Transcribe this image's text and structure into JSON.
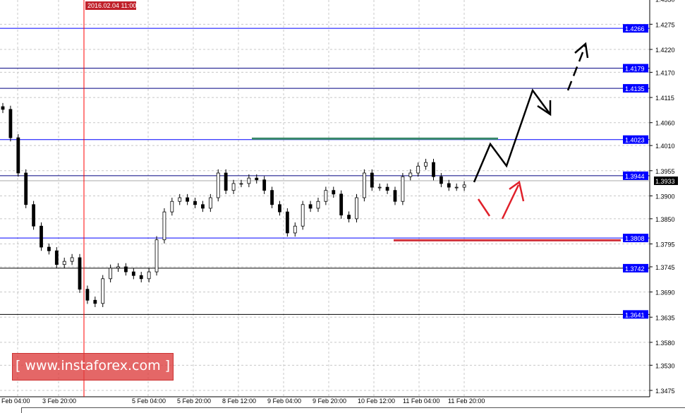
{
  "chart_data": {
    "type": "candlestick",
    "title": "",
    "yaxis_ticks": [
      "1.4330",
      "1.4275",
      "1.4220",
      "1.4170",
      "1.4115",
      "1.4060",
      "1.4010",
      "1.3955",
      "1.3900",
      "1.3850",
      "1.3795",
      "1.3745",
      "1.3690",
      "1.3635",
      "1.3580",
      "1.3530",
      "1.3475"
    ],
    "ylim": [
      1.345,
      1.433
    ],
    "xaxis_ticks": [
      "Feb 04:00",
      "3 Feb 20:00",
      "5 Feb 04:00",
      "5 Feb 20:00",
      "8 Feb 12:00",
      "9 Feb 04:00",
      "9 Feb 20:00",
      "10 Feb 12:00",
      "11 Feb 04:00",
      "11 Feb 20:00"
    ],
    "crosshair_time": "2016.02.04 11:00",
    "closes": [
      1.4089,
      1.4027,
      1.395,
      1.3881,
      1.3834,
      1.3788,
      1.378,
      1.375,
      1.3757,
      1.3765,
      1.3696,
      1.3672,
      1.3665,
      1.3719,
      1.3742,
      1.3745,
      1.3734,
      1.3726,
      1.3719,
      1.3734,
      1.3804,
      1.3865,
      1.3888,
      1.3896,
      1.3888,
      1.3881,
      1.3873,
      1.3896,
      1.395,
      1.3912,
      1.3927,
      1.3927,
      1.3939,
      1.3935,
      1.3912,
      1.3881,
      1.3865,
      1.3819,
      1.3834,
      1.3881,
      1.3873,
      1.3888,
      1.3912,
      1.3904,
      1.3858,
      1.385,
      1.3896,
      1.395,
      1.3919,
      1.3919,
      1.3912,
      1.3888,
      1.3942,
      1.395,
      1.3965,
      1.3973,
      1.3942,
      1.3927,
      1.3919,
      1.3919,
      1.3924
    ],
    "levels": [
      {
        "value": "1.4266",
        "color": "#0000ff"
      },
      {
        "value": "1.4179",
        "color": "#000080"
      },
      {
        "value": "1.4135",
        "color": "#000080"
      },
      {
        "value": "1.4023",
        "color": "#0000ff"
      },
      {
        "value": "1.3944",
        "color": "#000080"
      },
      {
        "value": "1.3808",
        "color": "#0000ff"
      },
      {
        "value": "1.3742",
        "color": "#000000"
      },
      {
        "value": "1.3641",
        "color": "#000000"
      }
    ],
    "current_price": "1.3933",
    "resistance_line": {
      "value": 1.4025,
      "color": "#3a8a6a"
    },
    "support_line": {
      "value": 1.3803,
      "color": "#d0303a"
    },
    "colors": {
      "label_bg": "#0000ff",
      "crosshair": "#ff0000",
      "current_bg": "#000000"
    }
  },
  "watermark": "[ www.instaforex.com ]"
}
